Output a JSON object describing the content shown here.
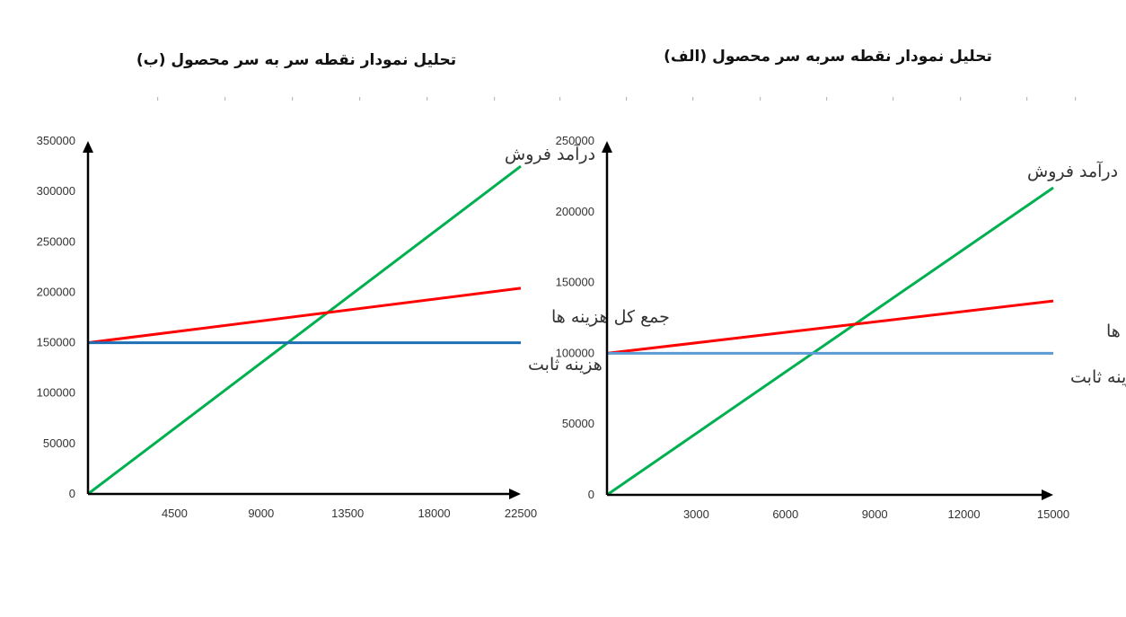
{
  "chart_data": [
    {
      "type": "line",
      "title": "تحلیل نمودار نقطه سر به سر محصول (ب)",
      "x": [
        0,
        22500
      ],
      "x_ticks": [
        "4500",
        "9000",
        "13500",
        "18000",
        "22500"
      ],
      "y_ticks": [
        "0",
        "50000",
        "100000",
        "150000",
        "200000",
        "250000",
        "300000",
        "350000"
      ],
      "xlim": [
        0,
        22500
      ],
      "ylim": [
        0,
        350000
      ],
      "grid": false,
      "series": [
        {
          "name": "درآمد فروش",
          "color": "#00b050",
          "values": [
            0,
            325000
          ]
        },
        {
          "name": "جمع کل هزینه ها",
          "color": "#ff0000",
          "values": [
            150000,
            204000
          ]
        },
        {
          "name": "هزینه ثابت",
          "color": "#1f6fb5",
          "values": [
            150000,
            150000
          ]
        }
      ]
    },
    {
      "type": "line",
      "title": "تحلیل نمودار نقطه سربه سر محصول (الف)",
      "x": [
        0,
        15000
      ],
      "x_ticks": [
        "3000",
        "6000",
        "9000",
        "12000",
        "15000"
      ],
      "y_ticks": [
        "0",
        "50000",
        "100000",
        "150000",
        "200000",
        "250000"
      ],
      "xlim": [
        0,
        15000
      ],
      "ylim": [
        0,
        250000
      ],
      "grid": false,
      "series": [
        {
          "name": "درآمد فروش",
          "color": "#00b050",
          "values": [
            0,
            217000
          ]
        },
        {
          "name": "جمع کل هزینه ها",
          "color": "#ff0000",
          "values": [
            100000,
            137000
          ]
        },
        {
          "name": "هزینه ثابت",
          "color": "#5b9bd5",
          "values": [
            100000,
            100000
          ]
        }
      ]
    }
  ]
}
